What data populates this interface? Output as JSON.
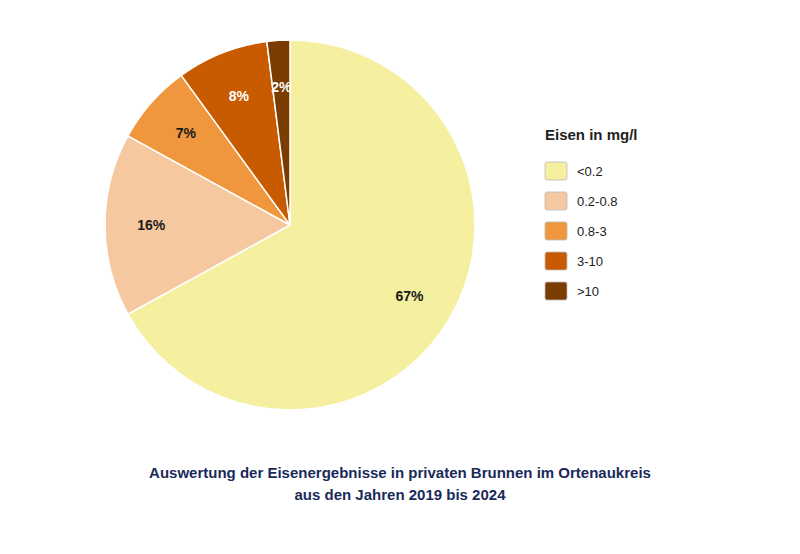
{
  "chart_data": {
    "type": "pie",
    "title": "Auswertung der Eisenergebnisse in privaten Brunnen im Ortenaukreis",
    "subtitle": "aus den Jahren 2019 bis 2024",
    "legend_title": "Eisen in mg/l",
    "categories": [
      "<0.2",
      "0.2-0.8",
      "0.8-3",
      "3-10",
      ">10"
    ],
    "values": [
      67,
      16,
      7,
      8,
      2
    ],
    "value_labels": [
      "67%",
      "16%",
      "7%",
      "8%",
      "2%"
    ],
    "colors": [
      "#F5F0A0",
      "#F5C8A0",
      "#F0963C",
      "#C85A00",
      "#7A3C00"
    ],
    "data_labels": true,
    "legend": "right"
  }
}
